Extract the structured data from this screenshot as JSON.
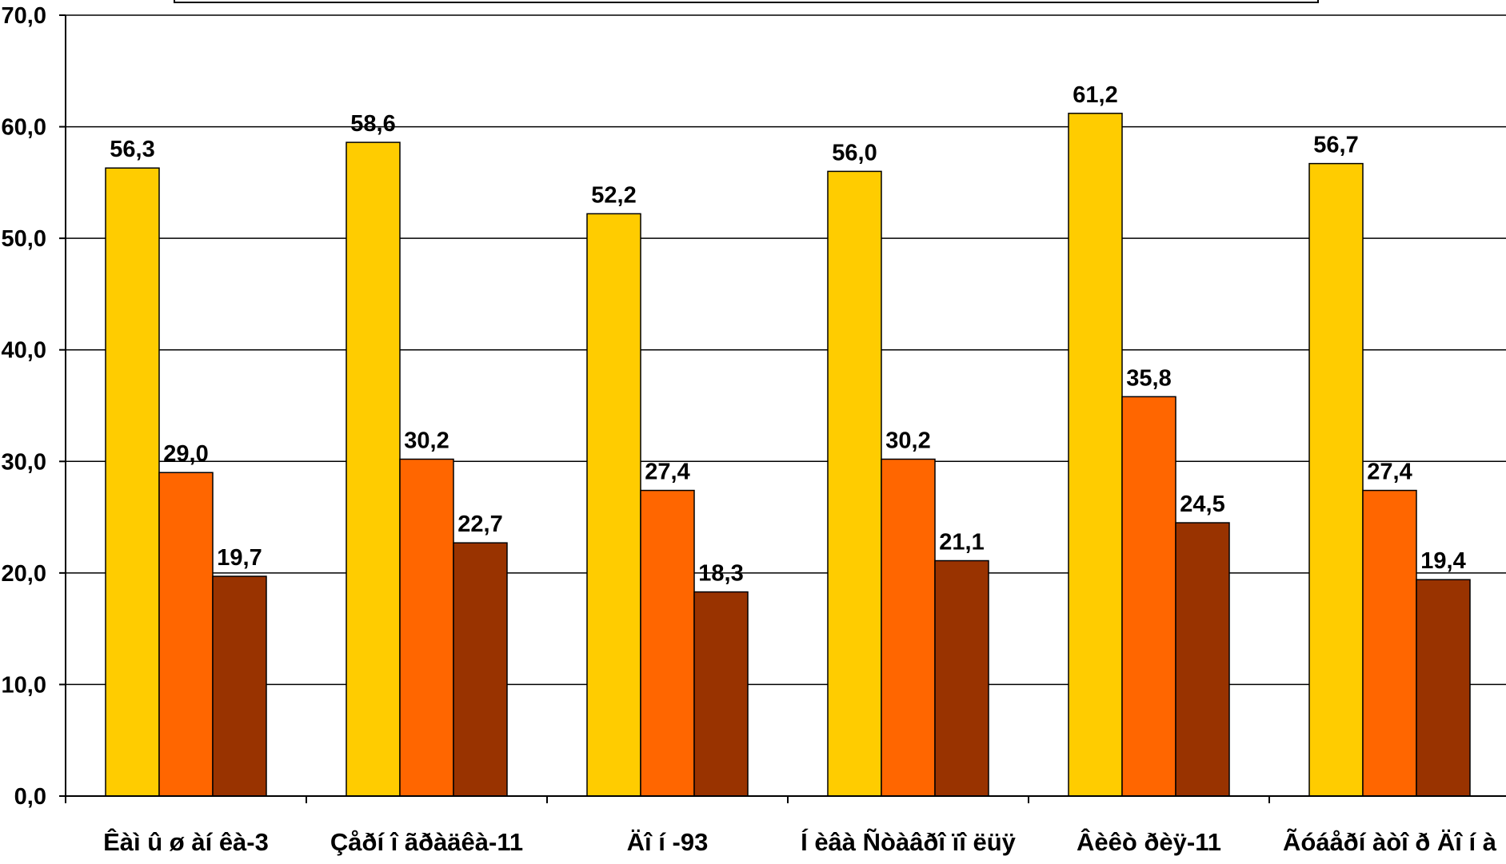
{
  "chart_data": {
    "type": "bar",
    "categories": [
      "Êàì û ø àí êà-3",
      "Çåðí î ãðàäêà-11",
      "Äî í -93",
      "Í èâà Ñòàâðî ïî ëüÿ",
      "Âèêò ðèÿ-11",
      "Ãóáåðí àòî ð Äî í à"
    ],
    "series": [
      {
        "color": "#FFCC00",
        "values": [
          56.3,
          58.6,
          52.2,
          56.0,
          61.2,
          56.7
        ]
      },
      {
        "color": "#FF6600",
        "values": [
          29.0,
          30.2,
          27.4,
          30.2,
          35.8,
          27.4
        ]
      },
      {
        "color": "#993300",
        "values": [
          19.7,
          22.7,
          18.3,
          21.1,
          24.5,
          19.4
        ]
      }
    ],
    "value_labels": [
      [
        "56,3",
        "58,6",
        "52,2",
        "56,0",
        "61,2",
        "56,7"
      ],
      [
        "29,0",
        "30,2",
        "27,4",
        "30,2",
        "35,8",
        "27,4"
      ],
      [
        "19,7",
        "22,7",
        "18,3",
        "21,1",
        "24,5",
        "19,4"
      ]
    ],
    "y_ticks": [
      "0,0",
      "10,0",
      "20,0",
      "30,0",
      "40,0",
      "50,0",
      "60,0",
      "70,0"
    ],
    "title": "",
    "xlabel": "",
    "ylabel": "",
    "ylim": [
      0,
      70
    ],
    "grid": true,
    "legend_placement": "top"
  }
}
